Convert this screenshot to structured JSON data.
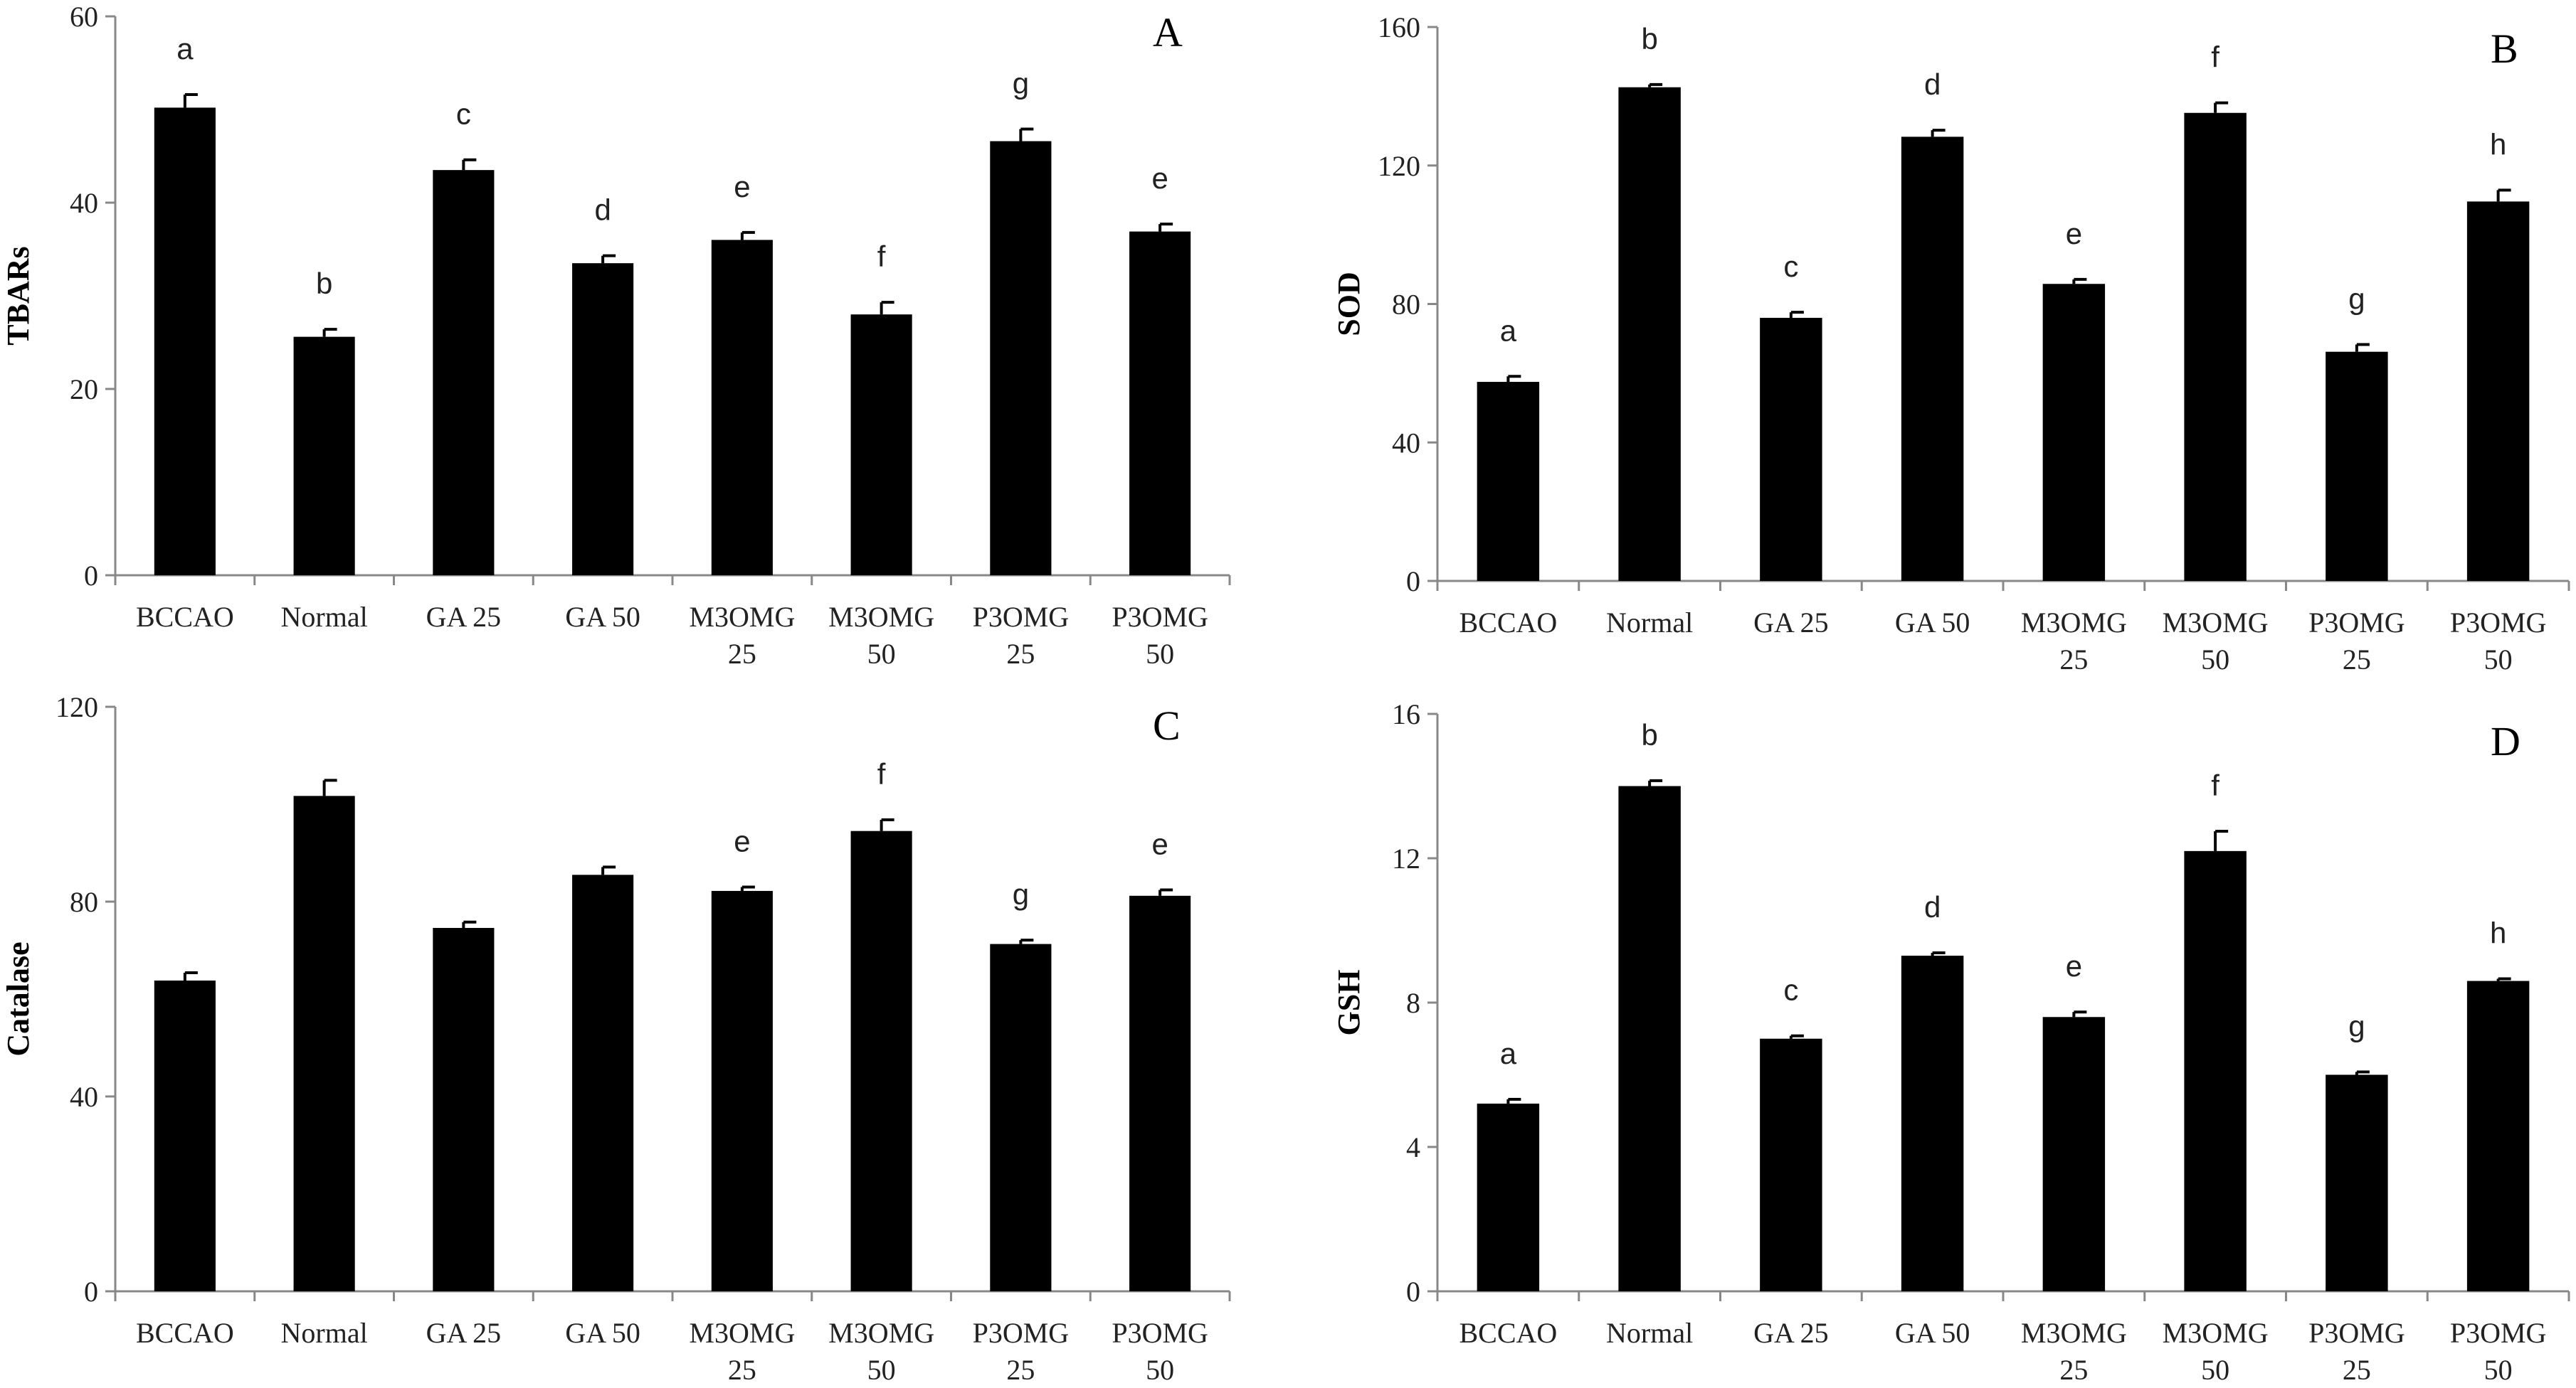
{
  "chart_data": [
    {
      "type": "bar",
      "panel_letter": "A",
      "ylabel": "TBARs",
      "ylim": [
        0,
        60
      ],
      "yticks": [
        0,
        20,
        40,
        60
      ],
      "categories": [
        "BCCAO",
        "Normal",
        "GA 25",
        "GA 50",
        "M3OMG 25",
        "M3OMG 50",
        "P3OMG 25",
        "P3OMG 50"
      ],
      "values": [
        50.2,
        25.6,
        43.5,
        33.5,
        36.0,
        28.0,
        46.6,
        36.9
      ],
      "errors": [
        1.4,
        0.8,
        1.1,
        0.8,
        0.8,
        1.3,
        1.3,
        0.8
      ],
      "significance_labels": [
        "a",
        "b",
        "c",
        "d",
        "e",
        "f",
        "g",
        "e"
      ],
      "bar_color": "#000000"
    },
    {
      "type": "bar",
      "panel_letter": "B",
      "ylabel": "SOD",
      "ylim": [
        0,
        160
      ],
      "yticks": [
        0,
        40,
        80,
        120,
        160
      ],
      "categories": [
        "BCCAO",
        "Normal",
        "GA 25",
        "GA 50",
        "M3OMG 25",
        "M3OMG 50",
        "P3OMG 25",
        "P3OMG 50"
      ],
      "values": [
        57.5,
        142.6,
        76.0,
        128.3,
        85.8,
        135.2,
        66.2,
        109.6
      ],
      "errors": [
        1.6,
        0.8,
        1.6,
        1.9,
        1.3,
        2.9,
        2.1,
        3.3
      ],
      "significance_labels": [
        "a",
        "b",
        "c",
        "d",
        "e",
        "f",
        "g",
        "h"
      ],
      "bar_color": "#000000"
    },
    {
      "type": "bar",
      "panel_letter": "C",
      "ylabel": "Catalase",
      "ylim": [
        0,
        120
      ],
      "yticks": [
        0,
        40,
        80,
        120
      ],
      "categories": [
        "BCCAO",
        "Normal",
        "GA 25",
        "GA 50",
        "M3OMG 25",
        "M3OMG 50",
        "P3OMG 25",
        "P3OMG 50"
      ],
      "values": [
        63.8,
        101.7,
        74.6,
        85.5,
        82.2,
        94.5,
        71.3,
        81.2
      ],
      "errors": [
        1.6,
        3.2,
        1.2,
        1.6,
        0.8,
        2.3,
        0.8,
        1.2
      ],
      "significance_labels": [
        "",
        "",
        "",
        "",
        "e",
        "f",
        "g",
        "e"
      ],
      "bar_color": "#000000"
    },
    {
      "type": "bar",
      "panel_letter": "D",
      "ylabel": "GSH",
      "ylim": [
        0,
        16
      ],
      "yticks": [
        0,
        4,
        8,
        12,
        16
      ],
      "categories": [
        "BCCAO",
        "Normal",
        "GA 25",
        "GA 50",
        "M3OMG 25",
        "M3OMG 50",
        "P3OMG 25",
        "P3OMG 50"
      ],
      "values": [
        5.2,
        14.0,
        7.0,
        9.3,
        7.6,
        12.2,
        6.0,
        8.6
      ],
      "errors": [
        0.12,
        0.15,
        0.08,
        0.08,
        0.14,
        0.55,
        0.08,
        0.06
      ],
      "significance_labels": [
        "a",
        "b",
        "c",
        "d",
        "e",
        "f",
        "g",
        "h"
      ],
      "bar_color": "#000000"
    }
  ]
}
